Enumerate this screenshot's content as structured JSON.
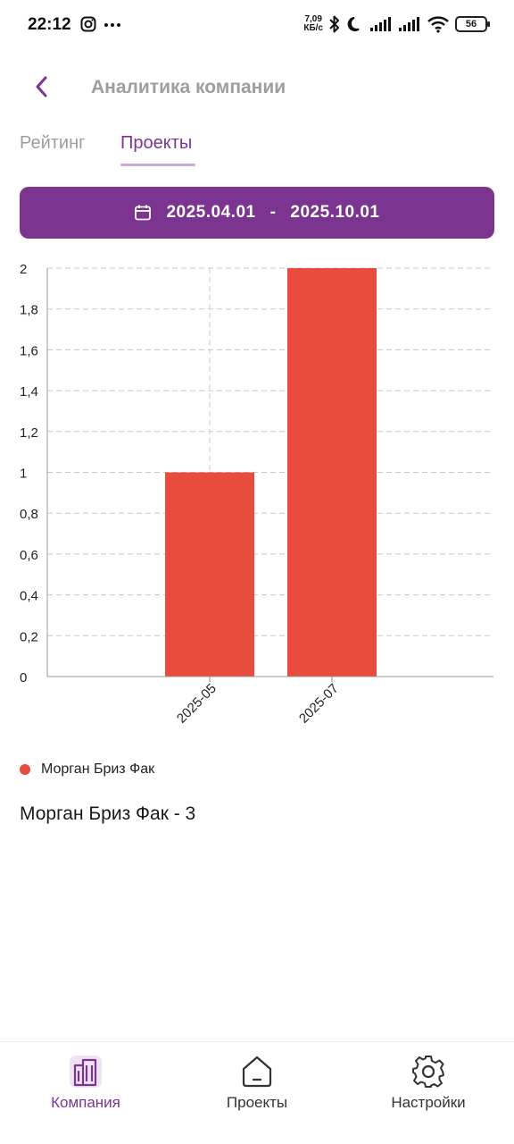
{
  "status_bar": {
    "time": "22:12",
    "net_speed_value": "7,09",
    "net_speed_unit": "КБ/с",
    "battery": "56",
    "icons": [
      "instagram-icon",
      "more-dots-icon",
      "bluetooth-icon",
      "moon-icon",
      "signal-icon",
      "signal-icon",
      "wifi-icon",
      "battery-icon"
    ]
  },
  "header": {
    "title": "Аналитика компании",
    "back_icon": "chevron-left-icon"
  },
  "tabs": [
    {
      "label": "Рейтинг",
      "active": false
    },
    {
      "label": "Проекты",
      "active": true
    }
  ],
  "date_range": {
    "start": "2025.04.01",
    "separator": "-",
    "end": "2025.10.01",
    "icon": "calendar-icon"
  },
  "chart_data": {
    "type": "bar",
    "categories": [
      "2025-05",
      "2025-07"
    ],
    "series": [
      {
        "name": "Морган Бриз Фак",
        "values": [
          1,
          2
        ],
        "color": "#e74c3c"
      }
    ],
    "yticks": [
      "0",
      "0,2",
      "0,4",
      "0,6",
      "0,8",
      "1",
      "1,2",
      "1,4",
      "1,6",
      "1,8",
      "2"
    ],
    "ylim": [
      0,
      2
    ],
    "grid": true,
    "legend": "bottom-left"
  },
  "legend": {
    "label": "Морган Бриз Фак",
    "color": "#e74c3c"
  },
  "summary": "Морган Бриз Фак - 3",
  "bottom_nav": [
    {
      "label": "Компания",
      "icon": "building-icon",
      "active": true
    },
    {
      "label": "Проекты",
      "icon": "home-icon",
      "active": false
    },
    {
      "label": "Настройки",
      "icon": "gear-icon",
      "active": false
    }
  ],
  "colors": {
    "accent": "#7b3591",
    "bar": "#e74c3c",
    "muted": "#9e9e9e"
  }
}
